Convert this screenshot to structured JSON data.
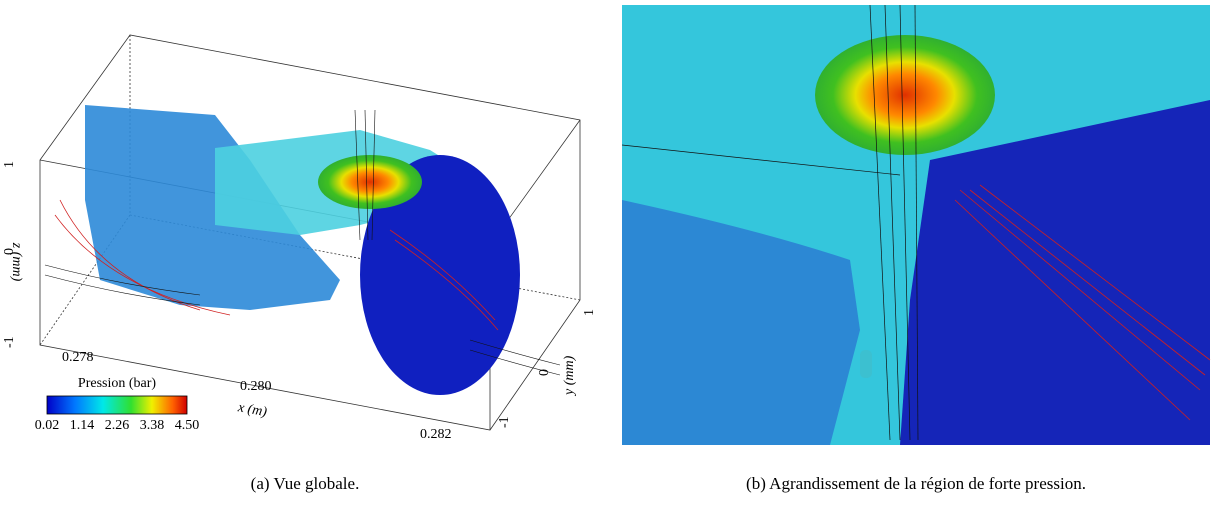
{
  "panels": [
    {
      "caption": "(a)  Vue globale.",
      "colorbar": {
        "title": "Pression (bar)",
        "ticks": [
          "0.02",
          "1.14",
          "2.26",
          "3.38",
          "4.50"
        ]
      },
      "axes": {
        "x": {
          "label": "x (m)",
          "ticks": [
            "0.278",
            "0.280",
            "0.282"
          ]
        },
        "y": {
          "label": "y (mm)",
          "ticks": [
            "-1",
            "0",
            "1"
          ]
        },
        "z": {
          "label": "z (mm)",
          "ticks": [
            "-1",
            "0",
            "1"
          ]
        }
      }
    },
    {
      "caption": "(b)  Agrandissement de la région de forte pression."
    }
  ]
}
